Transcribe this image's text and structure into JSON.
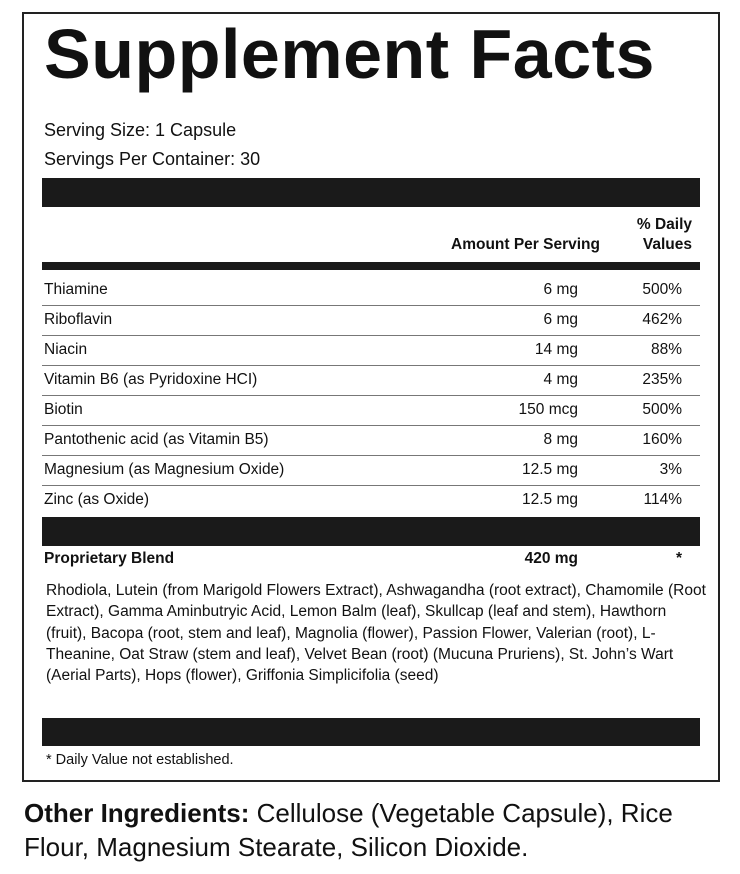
{
  "title": "Supplement Facts",
  "serving_size": "Serving Size: 1 Capsule",
  "servings_per_container": "Servings Per Container: 30",
  "header": {
    "amount": "Amount Per Serving",
    "dv_line1": "% Daily",
    "dv_line2": "Values"
  },
  "rows": [
    {
      "name": "Thiamine",
      "amount": "6 mg",
      "dv": "500%"
    },
    {
      "name": "Riboflavin",
      "amount": "6 mg",
      "dv": "462%"
    },
    {
      "name": "Niacin",
      "amount": "14 mg",
      "dv": "88%"
    },
    {
      "name": "Vitamin B6 (as Pyridoxine HCI)",
      "amount": "4 mg",
      "dv": "235%"
    },
    {
      "name": "Biotin",
      "amount": "150 mcg",
      "dv": "500%"
    },
    {
      "name": "Pantothenic acid (as Vitamin B5)",
      "amount": "8 mg",
      "dv": "160%"
    },
    {
      "name": "Magnesium (as Magnesium Oxide)",
      "amount": "12.5 mg",
      "dv": "3%"
    },
    {
      "name": "Zinc (as Oxide)",
      "amount": "12.5 mg",
      "dv": "114%"
    }
  ],
  "blend": {
    "name": "Proprietary Blend",
    "amount": "420 mg",
    "dv": "*",
    "ingredients": "Rhodiola, Lutein (from Marigold Flowers Extract), Ashwagandha (root extract), Chamomile (Root Extract), Gamma Aminbutryic Acid, Lemon Balm (leaf), Skullcap (leaf and stem), Hawthorn (fruit), Bacopa (root, stem and leaf), Magnolia (flower), Passion Flower, Valerian (root), L-Theanine, Oat Straw (stem and leaf), Velvet Bean (root) (Mucuna Pruriens), St. John’s Wart (Aerial Parts), Hops (flower), Griffonia Simplicifolia (seed)"
  },
  "footnote": "* Daily Value not established.",
  "other": {
    "label": "Other Ingredients:",
    "text": " Cellulose (Vegetable Capsule), Rice Flour, Magnesium Stearate, Silicon Dioxide."
  }
}
